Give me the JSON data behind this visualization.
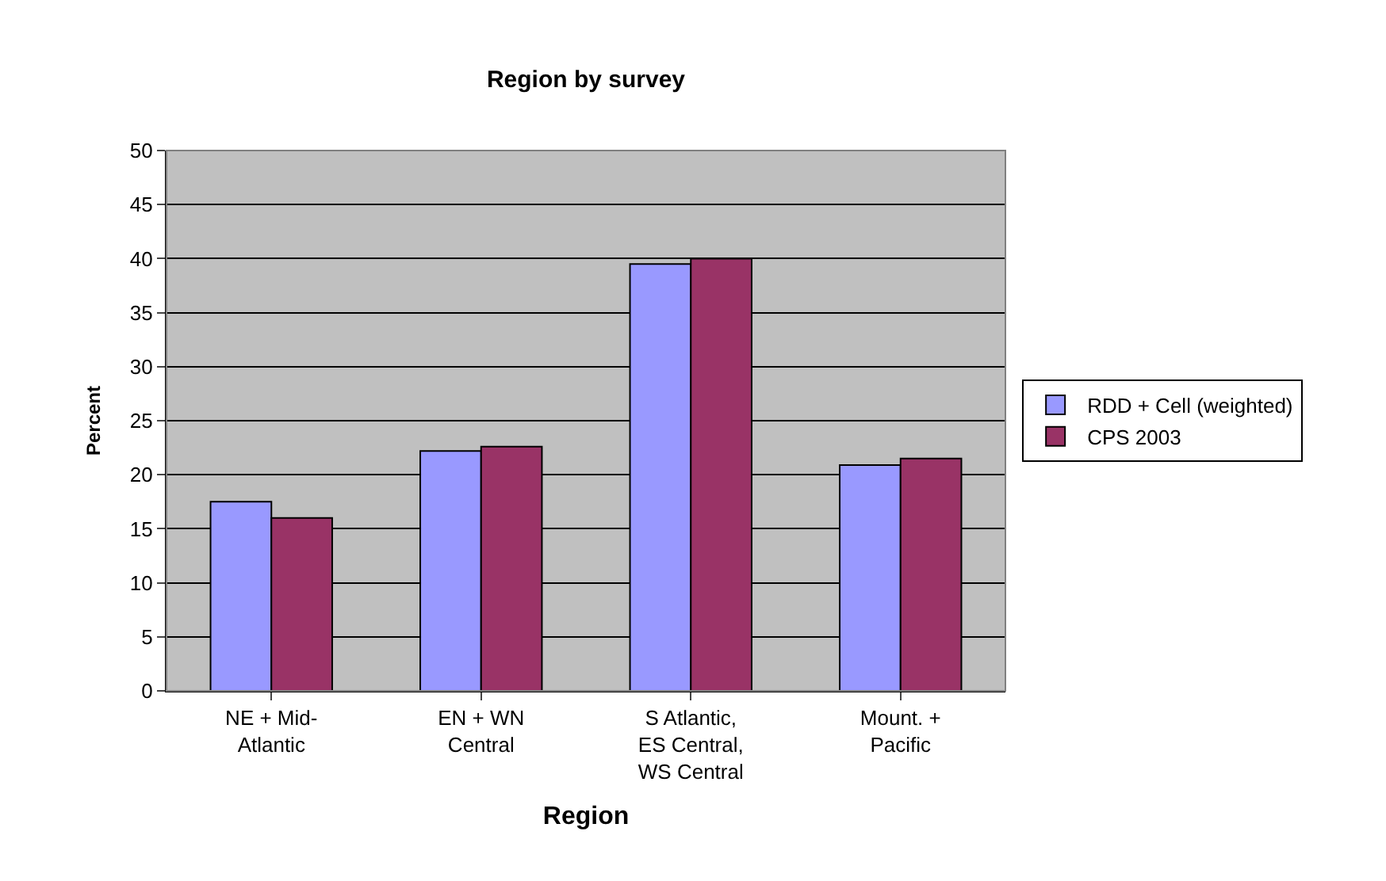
{
  "chart_data": {
    "type": "bar",
    "title": "Region by survey",
    "xlabel": "Region",
    "ylabel": "Percent",
    "categories": [
      "NE + Mid-\nAtlantic",
      "EN + WN\nCentral",
      "S Atlantic,\nES Central,\nWS Central",
      "Mount. +\nPacific"
    ],
    "series": [
      {
        "name": "RDD + Cell (weighted)",
        "color": "#9999ff",
        "values": [
          17.5,
          22.2,
          39.5,
          20.9
        ]
      },
      {
        "name": "CPS 2003",
        "color": "#993366",
        "values": [
          16,
          22.6,
          40,
          21.5
        ]
      }
    ],
    "ylim": [
      0,
      50
    ],
    "yticks": [
      0,
      5,
      10,
      15,
      20,
      25,
      30,
      35,
      40,
      45,
      50
    ],
    "grid": "y",
    "legend": "right"
  }
}
